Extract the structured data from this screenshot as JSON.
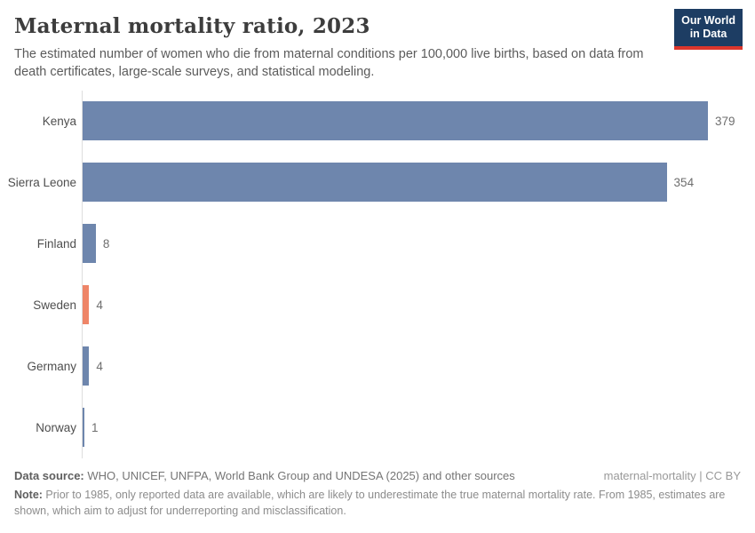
{
  "header": {
    "title": "Maternal mortality ratio, 2023",
    "subtitle": "The estimated number of women who die from maternal conditions per 100,000 live births, based on data from death certificates, large-scale surveys, and statistical modeling.",
    "logo": {
      "line1": "Our World",
      "line2": "in Data",
      "bg_color": "#1d3d63",
      "accent_color": "#dc362c"
    }
  },
  "chart_data": {
    "type": "bar",
    "orientation": "horizontal",
    "title": "Maternal mortality ratio, 2023",
    "categories": [
      "Kenya",
      "Sierra Leone",
      "Finland",
      "Sweden",
      "Germany",
      "Norway"
    ],
    "values": [
      379,
      354,
      8,
      4,
      4,
      1
    ],
    "bar_colors": [
      "#6e86ad",
      "#6e86ad",
      "#6e86ad",
      "#ee8568",
      "#6e86ad",
      "#6e86ad"
    ],
    "default_bar_color": "#6e86ad",
    "highlight_bar_color": "#ee8568",
    "axis_line_color": "#dedede",
    "xlim": [
      0,
      379
    ],
    "grid": false,
    "legend": false,
    "value_labels_shown": true
  },
  "footer": {
    "data_source_label": "Data source:",
    "data_source_text": " WHO, UNICEF, UNFPA, World Bank Group and UNDESA (2025) and other sources",
    "license_text": "maternal-mortality | CC BY",
    "note_label": "Note:",
    "note_text": " Prior to 1985, only reported data are available, which are likely to underestimate the true maternal mortality rate. From 1985, estimates are shown, which aim to adjust for underreporting and misclassification."
  }
}
